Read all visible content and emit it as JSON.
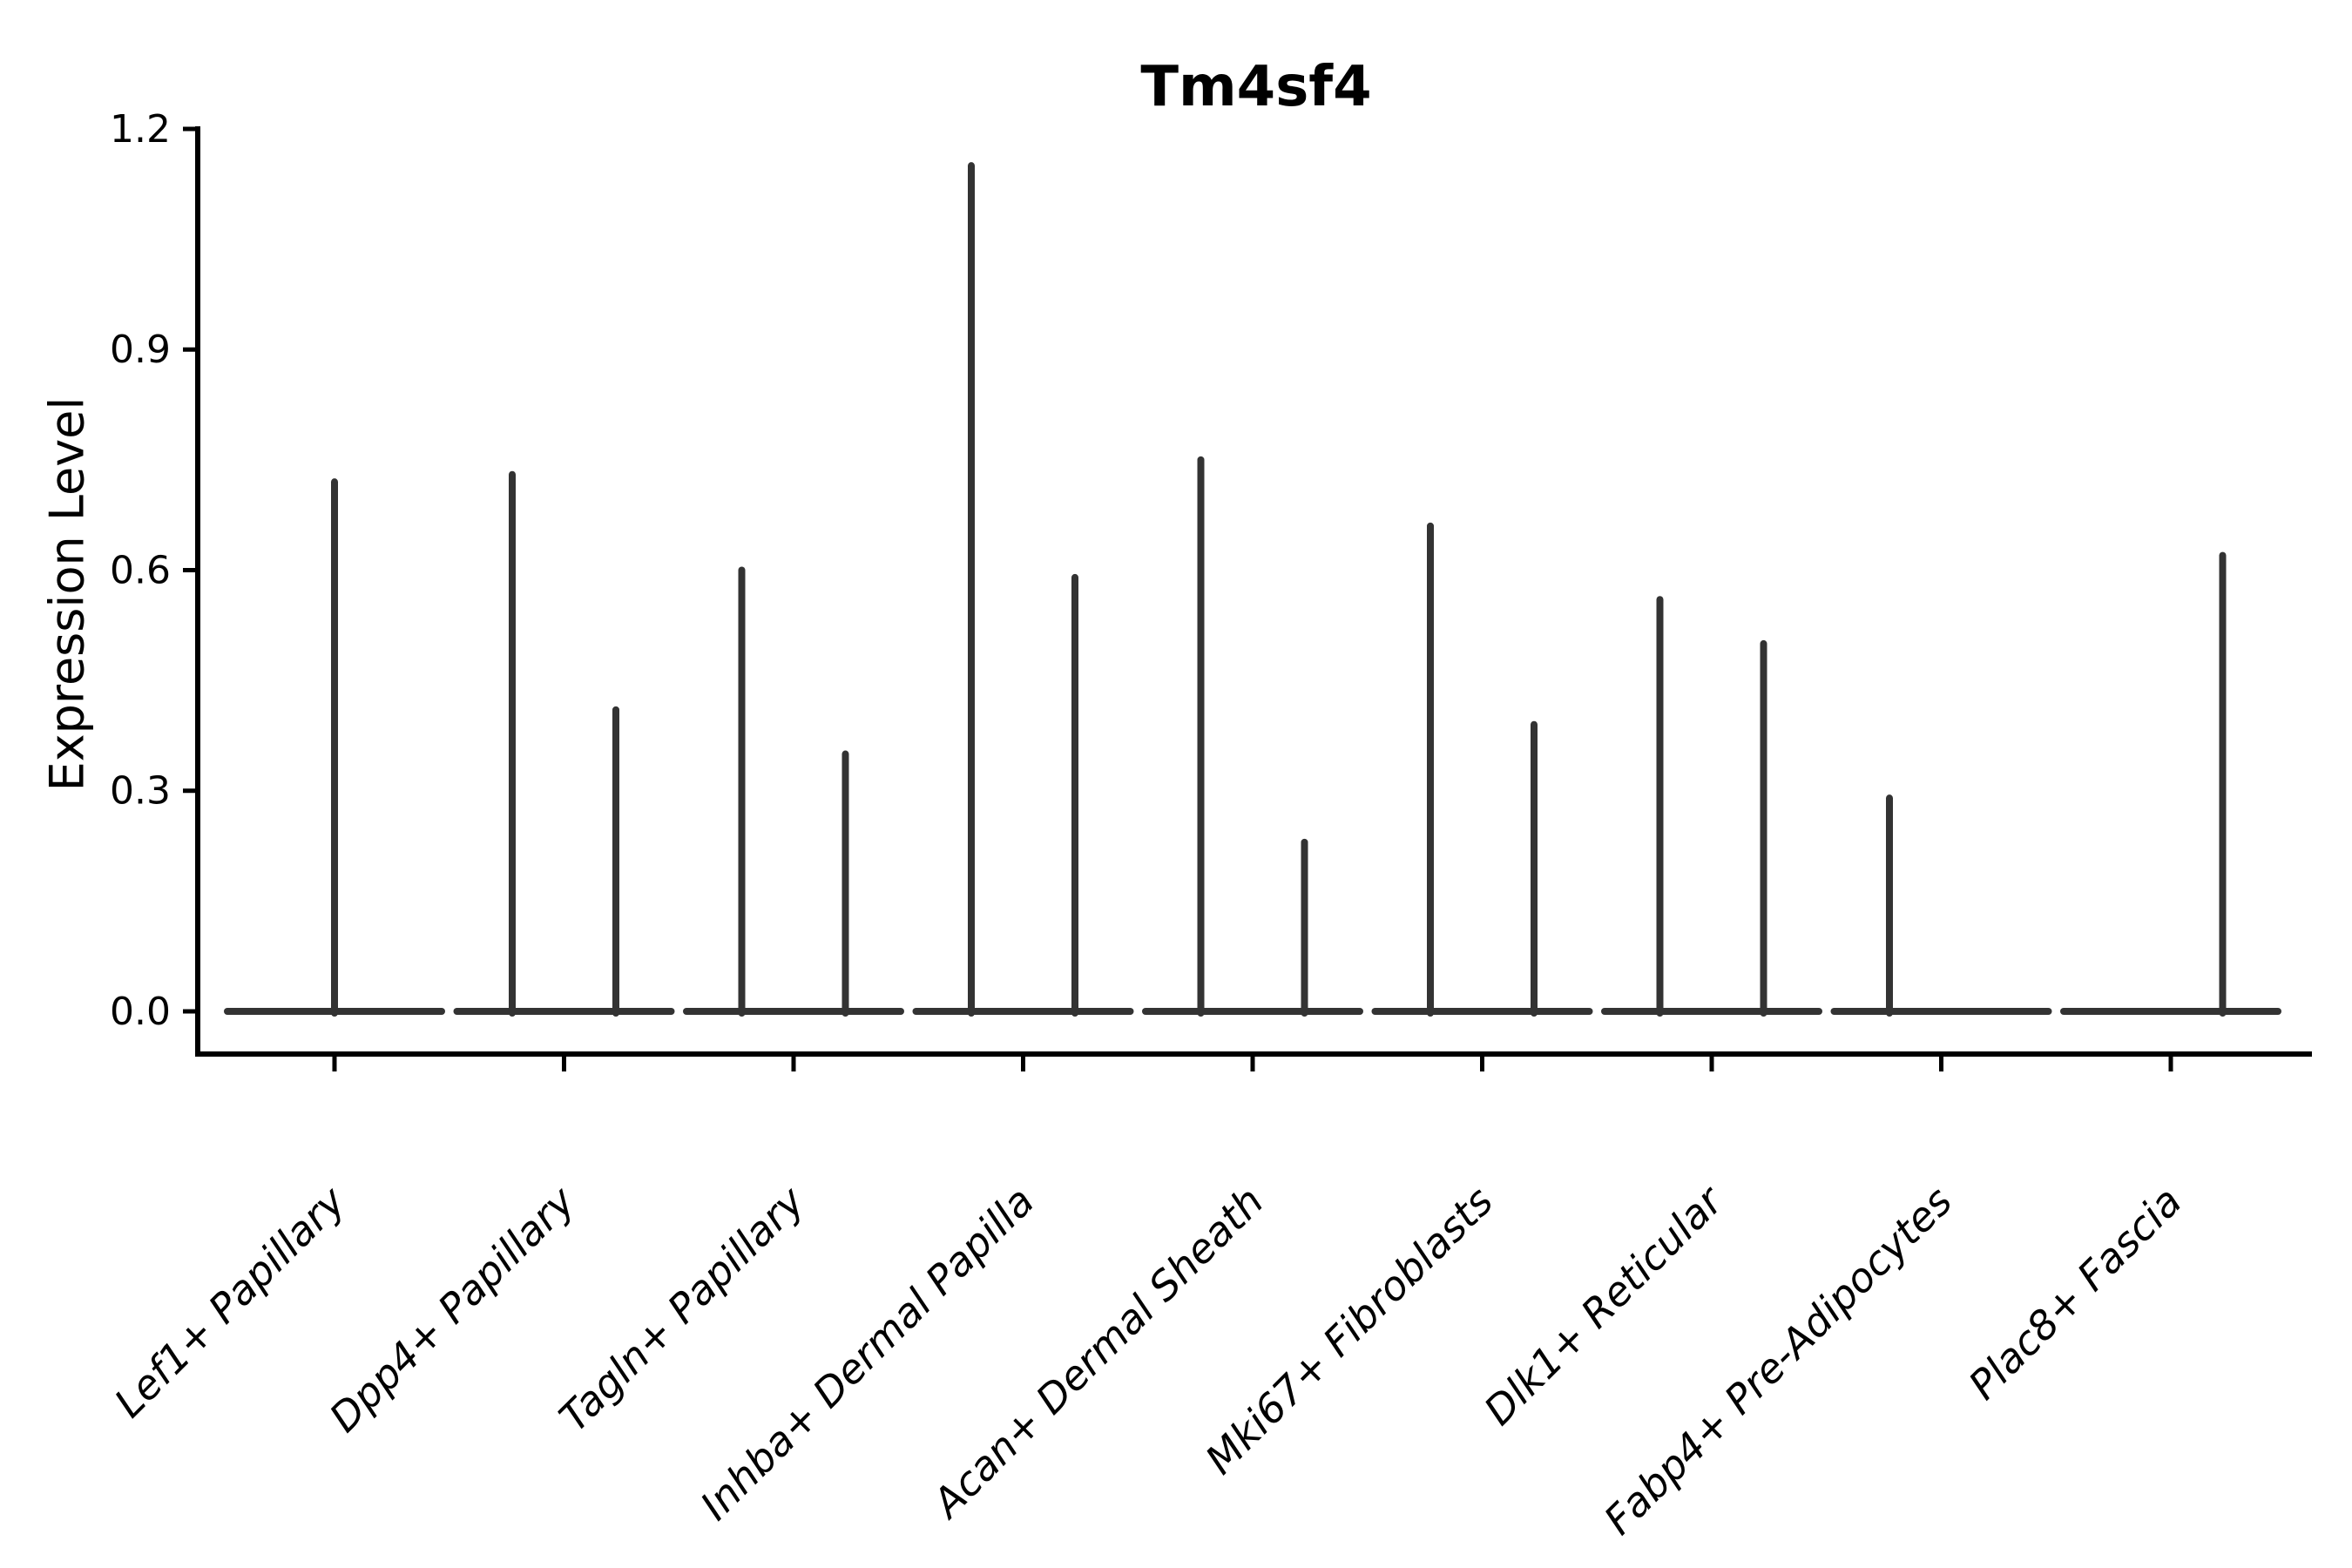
{
  "chart_data": {
    "type": "violin",
    "title": "Tm4sf4",
    "ylabel": "Expression Level",
    "xlabel": "",
    "ylim": [
      -0.06,
      1.2
    ],
    "yticks": [
      0.0,
      0.3,
      0.6,
      0.9,
      1.2
    ],
    "ytick_labels": [
      "0.0",
      "0.3",
      "0.6",
      "0.9",
      "1.2"
    ],
    "categories": [
      "Lef1+ Papillary",
      "Dpp4+ Papillary",
      "Tagln+ Papillary",
      "Inhba+ Dermal Papilla",
      "Acan+ Dermal Sheath",
      "Mki67+ Fibroblasts",
      "Dlk1+ Reticular",
      "Fabp4+ Pre-Adipocytes",
      "Plac8+ Fascia"
    ],
    "violins": [
      {
        "category": "Lef1+ Papillary",
        "spikes": [
          {
            "pos": "center",
            "max": 0.72
          }
        ]
      },
      {
        "category": "Dpp4+ Papillary",
        "spikes": [
          {
            "pos": "left",
            "max": 0.73
          },
          {
            "pos": "right",
            "max": 0.41
          }
        ]
      },
      {
        "category": "Tagln+ Papillary",
        "spikes": [
          {
            "pos": "left",
            "max": 0.6
          },
          {
            "pos": "right",
            "max": 0.35
          }
        ]
      },
      {
        "category": "Inhba+ Dermal Papilla",
        "spikes": [
          {
            "pos": "left",
            "max": 1.15
          },
          {
            "pos": "right",
            "max": 0.59
          }
        ]
      },
      {
        "category": "Acan+ Dermal Sheath",
        "spikes": [
          {
            "pos": "left",
            "max": 0.75
          },
          {
            "pos": "right",
            "max": 0.23
          }
        ]
      },
      {
        "category": "Mki67+ Fibroblasts",
        "spikes": [
          {
            "pos": "left",
            "max": 0.66
          },
          {
            "pos": "right",
            "max": 0.39
          }
        ]
      },
      {
        "category": "Dlk1+ Reticular",
        "spikes": [
          {
            "pos": "left",
            "max": 0.56
          },
          {
            "pos": "right",
            "max": 0.5
          }
        ]
      },
      {
        "category": "Fabp4+ Pre-Adipocytes",
        "spikes": [
          {
            "pos": "left",
            "max": 0.29
          }
        ]
      },
      {
        "category": "Plac8+ Fascia",
        "spikes": [
          {
            "pos": "right",
            "max": 0.62
          }
        ]
      }
    ],
    "baseline_value": 0.0,
    "grid": false,
    "legend": null,
    "colors": {
      "violin_stroke": "#333333",
      "axis": "#000000",
      "background": "#ffffff",
      "title": "#000000"
    }
  }
}
